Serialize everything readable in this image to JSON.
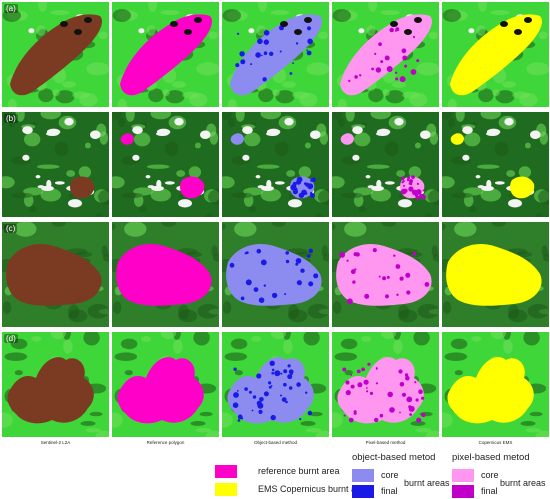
{
  "rows": [
    {
      "label": "(a)"
    },
    {
      "label": "(b)"
    },
    {
      "label": "(c)"
    },
    {
      "label": "(d)"
    }
  ],
  "columns": [
    {
      "caption": "Sentinel-2 L2A"
    },
    {
      "caption": "Reference polygon"
    },
    {
      "caption": "Object-based method"
    },
    {
      "caption": "Pixel-based method"
    },
    {
      "caption": "Copernicus EMS"
    }
  ],
  "colors": {
    "reference": "#ff00c8",
    "ems": "#ffff00",
    "object_core": "#8c8cf0",
    "object_final": "#1a1ae6",
    "pixel_core": "#ff96f0",
    "pixel_final": "#c000c8",
    "burnt_natural": "#7a3b22",
    "vegetation": "#3fd63a"
  },
  "legend": {
    "reference_label": "reference burnt area",
    "ems_label": "EMS Copernicus burnt area",
    "object_title": "object-based metod",
    "object_core": "core",
    "object_final": "final",
    "object_burnt": "burnt areas",
    "pixel_title": "pixel-based metod",
    "pixel_core": "core",
    "pixel_final": "final",
    "pixel_burnt": "burnt areas"
  }
}
